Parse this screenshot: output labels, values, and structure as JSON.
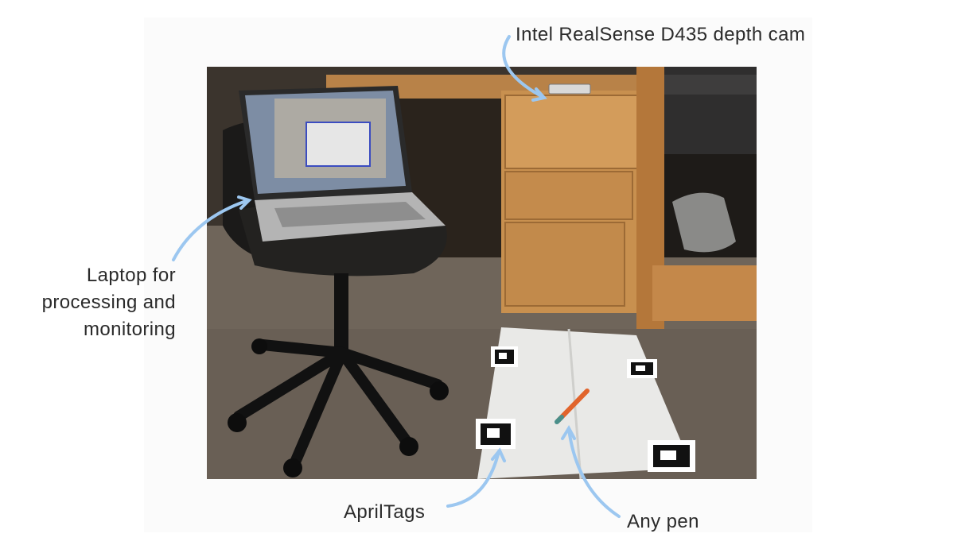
{
  "annotations": {
    "camera": "Intel RealSense D435 depth cam",
    "laptop": "Laptop for processing and monitoring",
    "tags": "AprilTags",
    "pen": "Any pen"
  },
  "colors": {
    "arrow": "#9cc7f0",
    "text": "#2b2b2b",
    "carpet": "#6f655a",
    "wood": "#c8904f",
    "sheet": "#e9e9e7"
  }
}
